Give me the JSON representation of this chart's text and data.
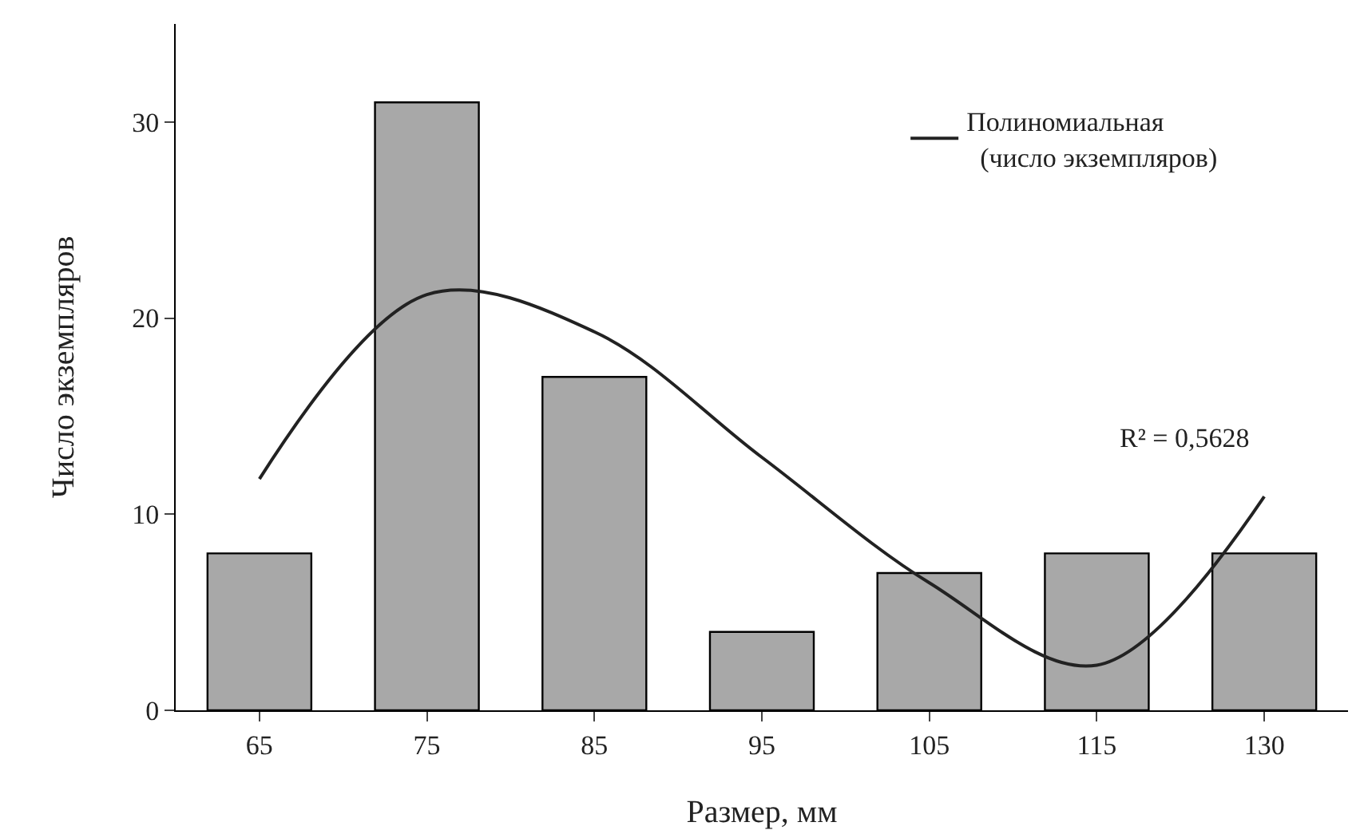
{
  "chart_data": {
    "type": "bar",
    "xlabel": "Размер, мм",
    "ylabel": "Число экземпляров",
    "categories": [
      "65",
      "75",
      "85",
      "95",
      "105",
      "115",
      "130"
    ],
    "ylim": [
      0,
      35
    ],
    "yticks": [
      0,
      10,
      20,
      30
    ],
    "grid": false,
    "legend": "top right",
    "series": [
      {
        "color": "#a8a8a8",
        "values": [
          8,
          31,
          17,
          4,
          7,
          8,
          8
        ]
      },
      {
        "type": "line",
        "name": "Полиномиальная (число экземпляров)",
        "color": "#222222",
        "values": [
          11.8,
          21.2,
          19.3,
          12.9,
          6.5,
          2.3,
          10.9
        ]
      }
    ],
    "annotations": [
      "R² = 0,5628"
    ]
  }
}
